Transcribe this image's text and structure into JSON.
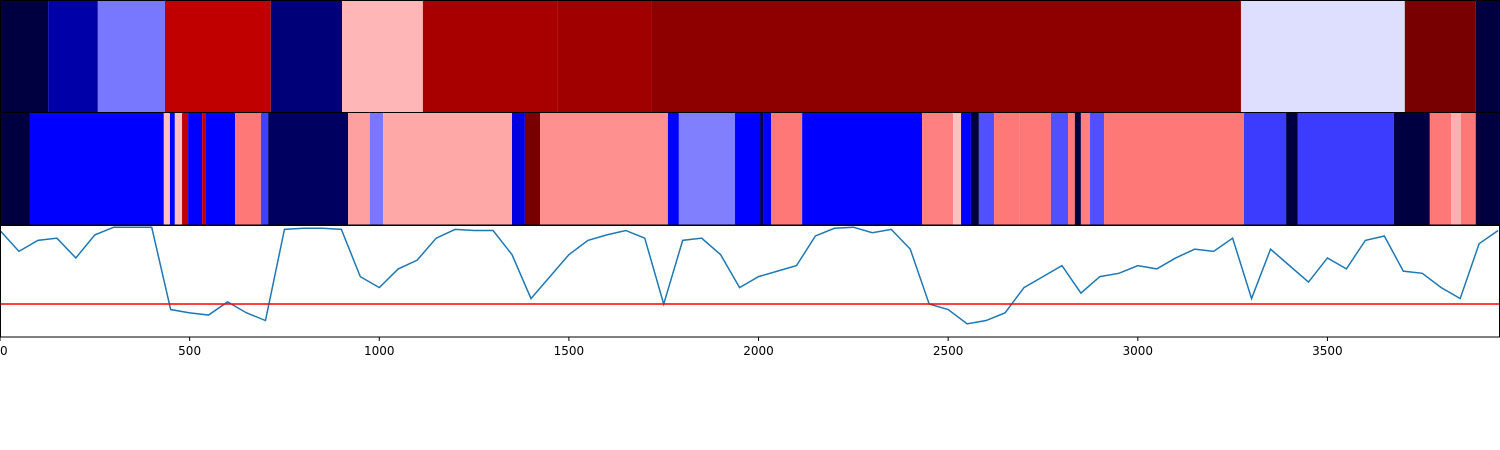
{
  "chart_data": [
    {
      "type": "segments",
      "edges": [
        0,
        127,
        258,
        435,
        714,
        902,
        1115,
        1471,
        1719,
        3272,
        3704,
        3891,
        3955
      ],
      "colors": [
        "#000040",
        "#0000a8",
        "#7878ff",
        "#c00000",
        "#000078",
        "#ffb6b6",
        "#a80000",
        "#a00000",
        "#8e0000",
        "#dedeff",
        "#780000",
        "#000040"
      ],
      "xlim": [
        0,
        3955
      ]
    },
    {
      "type": "segments",
      "edges": [
        0,
        79,
        432,
        448,
        461,
        480,
        496,
        533,
        543,
        620,
        688,
        707,
        918,
        975,
        1010,
        1350,
        1384,
        1424,
        1761,
        1790,
        1938,
        2004,
        2014,
        2033,
        2115,
        2431,
        2513,
        2534,
        2560,
        2581,
        2621,
        2689,
        2771,
        2816,
        2834,
        2850,
        2874,
        2911,
        3280,
        3391,
        3422,
        3675,
        3770,
        3826,
        3852,
        3891,
        3955
      ],
      "colors": [
        "#000040",
        "#0000ff",
        "#ffc0c0",
        "#0000ff",
        "#ffc0c0",
        "#c00000",
        "#0000ff",
        "#c00000",
        "#0000ff",
        "#ff7878",
        "#4040ff",
        "#000060",
        "#ffa0a0",
        "#7878ff",
        "#ffa8a8",
        "#0000e0",
        "#780000",
        "#ff9090",
        "#0000ff",
        "#8080ff",
        "#0000ff",
        "#000060",
        "#0000ff",
        "#ff7878",
        "#0000ff",
        "#ff8080",
        "#ffc0c0",
        "#0000ff",
        "#000040",
        "#5050ff",
        "#ff7878",
        "#ff7878",
        "#5050ff",
        "#ff7878",
        "#000040",
        "#ff8080",
        "#5050ff",
        "#ff7878",
        "#3c3cff",
        "#000040",
        "#3c3cff",
        "#000040",
        "#ff7878",
        "#ffb0b0",
        "#ff7878",
        "#000040"
      ],
      "xlim": [
        0,
        3955
      ]
    },
    {
      "type": "line",
      "x": [
        0,
        50,
        100,
        150,
        200,
        250,
        300,
        350,
        400,
        450,
        500,
        550,
        600,
        650,
        700,
        750,
        800,
        850,
        900,
        950,
        1000,
        1050,
        1100,
        1150,
        1200,
        1250,
        1300,
        1350,
        1400,
        1450,
        1500,
        1550,
        1600,
        1650,
        1700,
        1750,
        1800,
        1850,
        1900,
        1950,
        2000,
        2050,
        2100,
        2150,
        2200,
        2250,
        2300,
        2350,
        2400,
        2450,
        2500,
        2550,
        2600,
        2650,
        2700,
        2750,
        2800,
        2850,
        2900,
        2950,
        3000,
        3050,
        3100,
        3150,
        3200,
        3250,
        3300,
        3350,
        3400,
        3450,
        3500,
        3550,
        3600,
        3650,
        3700,
        3750,
        3800,
        3850,
        3900,
        3950
      ],
      "values": [
        0.97,
        0.78,
        0.88,
        0.9,
        0.72,
        0.93,
        1.0,
        1.0,
        1.0,
        0.25,
        0.22,
        0.2,
        0.32,
        0.22,
        0.15,
        0.98,
        0.99,
        0.99,
        0.98,
        0.55,
        0.45,
        0.62,
        0.7,
        0.9,
        0.98,
        0.97,
        0.97,
        0.75,
        0.35,
        0.55,
        0.75,
        0.88,
        0.93,
        0.97,
        0.9,
        0.3,
        0.88,
        0.9,
        0.75,
        0.45,
        0.55,
        0.6,
        0.65,
        0.92,
        0.99,
        1.0,
        0.95,
        0.98,
        0.8,
        0.3,
        0.25,
        0.12,
        0.15,
        0.22,
        0.45,
        0.55,
        0.65,
        0.4,
        0.55,
        0.58,
        0.65,
        0.62,
        0.72,
        0.8,
        0.78,
        0.9,
        0.35,
        0.8,
        0.65,
        0.5,
        0.72,
        0.62,
        0.88,
        0.92,
        0.6,
        0.58,
        0.45,
        0.35,
        0.85,
        0.97
      ],
      "color": "#1f77b4",
      "hline": 0.3,
      "hline_color": "#ff0000",
      "xlim": [
        0,
        3955
      ],
      "ylim": [
        0,
        1.02
      ],
      "xticks": [
        0,
        500,
        1000,
        1500,
        2000,
        2500,
        3000,
        3500
      ]
    }
  ]
}
